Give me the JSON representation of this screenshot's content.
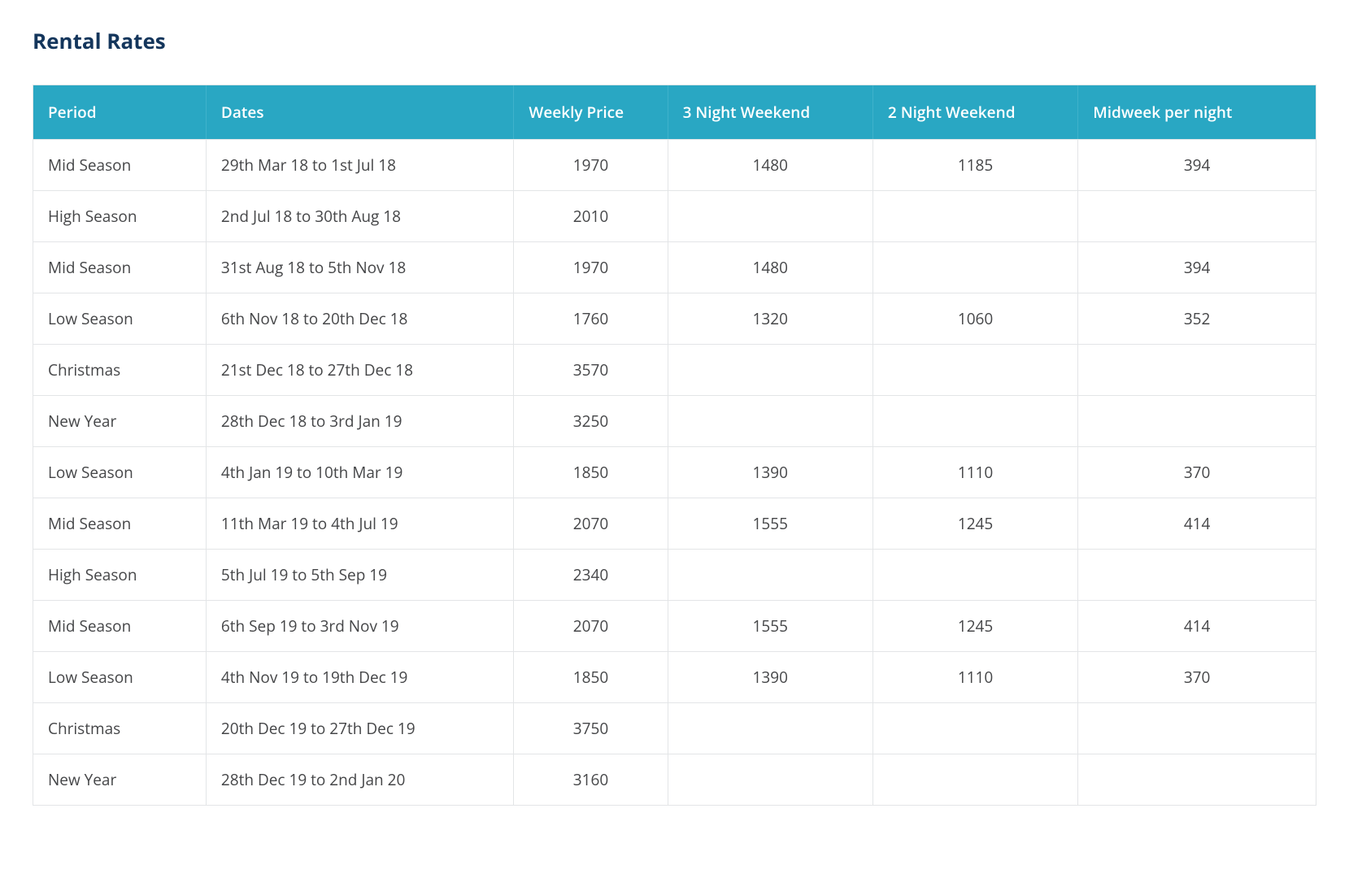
{
  "title": "Rental Rates",
  "style": {
    "title_color": "#14365c",
    "title_fontsize_pt": 20,
    "title_fontweight": 700,
    "header_bg": "#29a7c3",
    "header_fg": "#ffffff",
    "header_fontweight": 600,
    "header_fontsize_pt": 14,
    "body_fg": "#454648",
    "body_bg": "#ffffff",
    "body_fontsize_pt": 14,
    "border_color": "#e3e5e7",
    "header_border_color": "#3fb2cb",
    "font_family": "Open Sans / Segoe UI / sans-serif"
  },
  "table": {
    "type": "table",
    "columns": [
      {
        "key": "period",
        "label": "Period",
        "width_pct": 13.5,
        "align": "left"
      },
      {
        "key": "dates",
        "label": "Dates",
        "width_pct": 24.0,
        "align": "left"
      },
      {
        "key": "weekly",
        "label": "Weekly Price",
        "width_pct": 12.0,
        "align": "center"
      },
      {
        "key": "wknd3",
        "label": "3 Night Weekend",
        "width_pct": 16.0,
        "align": "center"
      },
      {
        "key": "wknd2",
        "label": "2 Night Weekend",
        "width_pct": 16.0,
        "align": "center"
      },
      {
        "key": "midwk",
        "label": "Midweek per night",
        "width_pct": 18.5,
        "align": "center"
      }
    ],
    "rows": [
      {
        "period": "Mid Season",
        "dates": "29th Mar 18 to 1st Jul 18",
        "weekly": "1970",
        "wknd3": "1480",
        "wknd2": "1185",
        "midwk": "394"
      },
      {
        "period": "High Season",
        "dates": "2nd Jul 18 to 30th Aug 18",
        "weekly": "2010",
        "wknd3": "",
        "wknd2": "",
        "midwk": ""
      },
      {
        "period": "Mid Season",
        "dates": "31st Aug 18 to 5th Nov 18",
        "weekly": "1970",
        "wknd3": "1480",
        "wknd2": "",
        "midwk": "394"
      },
      {
        "period": "Low Season",
        "dates": "6th Nov 18 to 20th Dec 18",
        "weekly": "1760",
        "wknd3": "1320",
        "wknd2": "1060",
        "midwk": "352"
      },
      {
        "period": "Christmas",
        "dates": "21st Dec 18 to 27th Dec 18",
        "weekly": "3570",
        "wknd3": "",
        "wknd2": "",
        "midwk": ""
      },
      {
        "period": "New Year",
        "dates": "28th Dec 18 to 3rd Jan 19",
        "weekly": "3250",
        "wknd3": "",
        "wknd2": "",
        "midwk": ""
      },
      {
        "period": "Low Season",
        "dates": "4th Jan 19 to 10th Mar 19",
        "weekly": "1850",
        "wknd3": "1390",
        "wknd2": "1110",
        "midwk": "370"
      },
      {
        "period": "Mid Season",
        "dates": "11th Mar 19 to 4th Jul 19",
        "weekly": "2070",
        "wknd3": "1555",
        "wknd2": "1245",
        "midwk": "414"
      },
      {
        "period": "High Season",
        "dates": "5th Jul 19 to 5th Sep 19",
        "weekly": "2340",
        "wknd3": "",
        "wknd2": "",
        "midwk": ""
      },
      {
        "period": "Mid Season",
        "dates": "6th Sep 19 to 3rd Nov 19",
        "weekly": "2070",
        "wknd3": "1555",
        "wknd2": "1245",
        "midwk": "414"
      },
      {
        "period": "Low Season",
        "dates": "4th Nov 19 to 19th Dec 19",
        "weekly": "1850",
        "wknd3": "1390",
        "wknd2": "1110",
        "midwk": "370"
      },
      {
        "period": "Christmas",
        "dates": "20th Dec 19 to 27th Dec 19",
        "weekly": "3750",
        "wknd3": "",
        "wknd2": "",
        "midwk": ""
      },
      {
        "period": "New Year",
        "dates": "28th Dec 19 to 2nd Jan 20",
        "weekly": "3160",
        "wknd3": "",
        "wknd2": "",
        "midwk": ""
      }
    ]
  }
}
